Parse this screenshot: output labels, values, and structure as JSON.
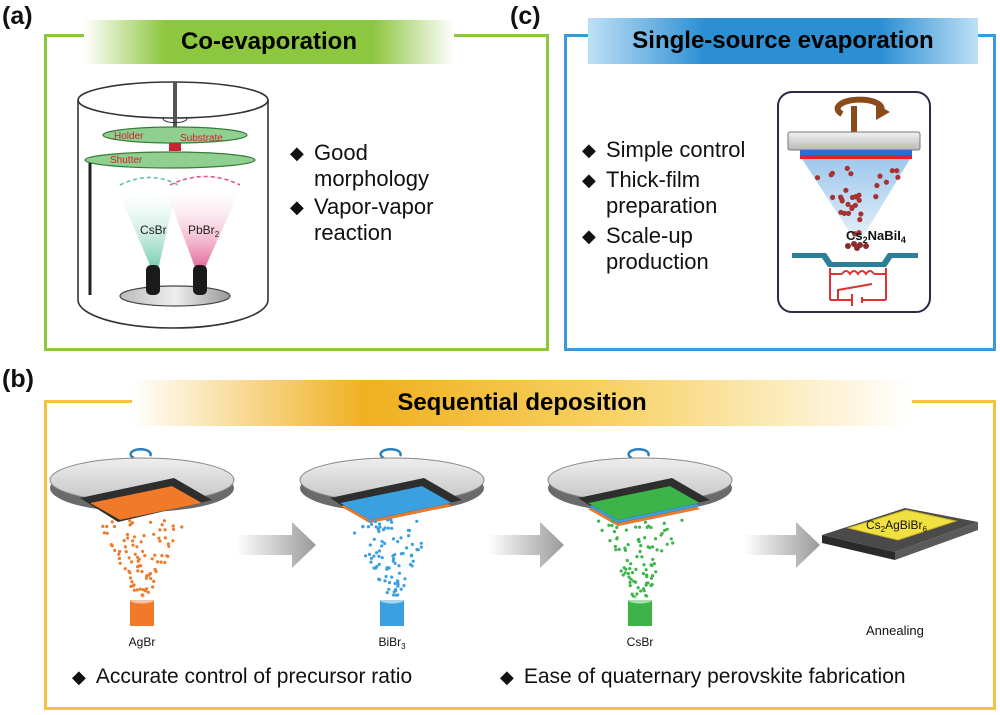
{
  "panels": {
    "a": {
      "label": "(a)",
      "title": "Co-evaporation",
      "bullets": [
        "Good morphology",
        "Vapor-vapor reaction"
      ],
      "bullet_lines": [
        [
          "Good",
          "morphology"
        ],
        [
          "Vapor-vapor",
          "reaction"
        ]
      ],
      "diagram_labels": {
        "holder": "Holder",
        "substrate": "Substrate",
        "shutter": "Shutter",
        "source1": "CsBr",
        "source2_base": "PbBr",
        "source2_sub": "2"
      },
      "colors": {
        "frame": "#8dc63f",
        "title_bar": "#8dc63f",
        "label_red": "#cc2233",
        "cone_green": "#5fc4a0",
        "cone_pink": "#e0508a"
      }
    },
    "c": {
      "label": "(c)",
      "title": "Single-source evaporation",
      "bullet_lines": [
        [
          "Simple control"
        ],
        [
          "Thick-film",
          "preparation"
        ],
        [
          "Scale-up",
          "production"
        ]
      ],
      "product_formula": {
        "p1": "Cs",
        "s1": "2",
        "p2": "NaBiI",
        "s2": "4"
      },
      "colors": {
        "frame": "#3b9ad9",
        "title_bar": "#2c8fd4",
        "particles": "#a83232",
        "heater": "#e03030"
      }
    },
    "b": {
      "label": "(b)",
      "title": "Sequential deposition",
      "steps": [
        {
          "source_base": "AgBr",
          "source_sub": ""
        },
        {
          "source_base": "BiBr",
          "source_sub": "3"
        },
        {
          "source_base": "CsBr",
          "source_sub": ""
        }
      ],
      "product_formula": {
        "p1": "Cs",
        "s1": "2",
        "p2": "AgBiBr",
        "s2": "6"
      },
      "final_label": "Annealing",
      "bullets": [
        "Accurate control of precursor ratio",
        "Ease of quaternary perovskite fabrication"
      ],
      "colors": {
        "frame": "#f5c242",
        "title_bar": "#f0b020",
        "agbr": "#f07a2a",
        "bibr": "#3aa0e0",
        "csbr": "#3cb44a",
        "product": "#f0e040"
      }
    }
  }
}
